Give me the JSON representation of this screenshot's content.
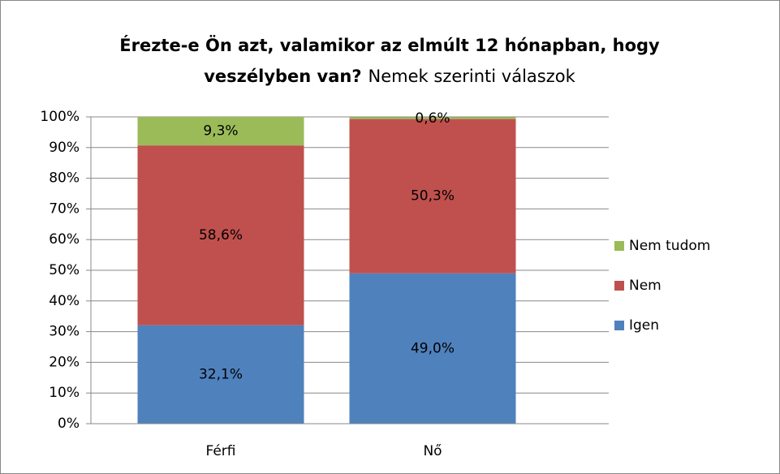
{
  "chart_data": {
    "type": "stacked_bar",
    "title_lines": [
      "Érezte-e Ön azt, valamikor az elmúlt 12 hónapban,  hogy",
      "veszélyben van?"
    ],
    "subtitle": "Nemek szerinti válaszok",
    "categories": [
      "Férfi",
      "Nő"
    ],
    "series": [
      {
        "name": "Igen",
        "color": "#4f81bd",
        "values": [
          32.1,
          49.0
        ],
        "value_labels": [
          "32,1%",
          "49,0%"
        ]
      },
      {
        "name": "Nem",
        "color": "#c0504d",
        "values": [
          58.6,
          50.3
        ],
        "value_labels": [
          "58,6%",
          "50,3%"
        ]
      },
      {
        "name": "Nem tudom",
        "color": "#9bbb59",
        "values": [
          9.3,
          0.6
        ],
        "value_labels": [
          "9,3%",
          "0,6%"
        ]
      }
    ],
    "ylim": [
      0,
      100
    ],
    "yticks": [
      {
        "value": 0,
        "label": "0%"
      },
      {
        "value": 10,
        "label": "10%"
      },
      {
        "value": 20,
        "label": "20%"
      },
      {
        "value": 30,
        "label": "30%"
      },
      {
        "value": 40,
        "label": "40%"
      },
      {
        "value": 50,
        "label": "50%"
      },
      {
        "value": 60,
        "label": "60%"
      },
      {
        "value": 70,
        "label": "70%"
      },
      {
        "value": 80,
        "label": "80%"
      },
      {
        "value": 90,
        "label": "90%"
      },
      {
        "value": 100,
        "label": "100%"
      }
    ],
    "grid": true,
    "legend": "right"
  }
}
